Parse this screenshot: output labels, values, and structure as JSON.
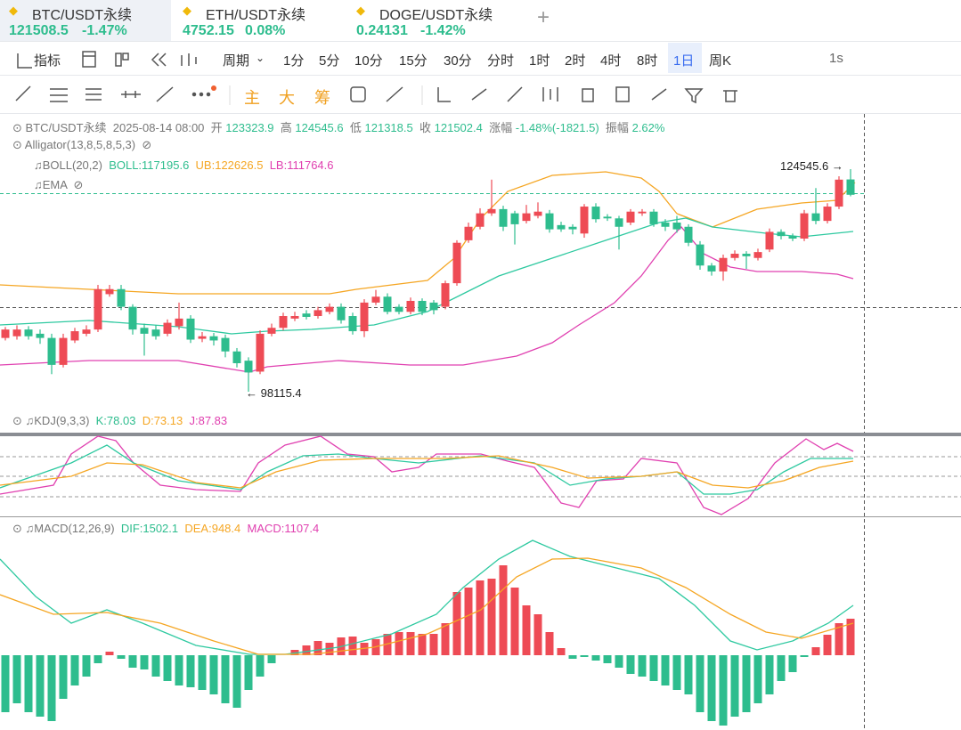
{
  "tabs": [
    {
      "symbol": "BTC/USDT永续",
      "price": "121508.5",
      "change": "-1.47%"
    },
    {
      "symbol": "ETH/USDT永续",
      "price": "4752.15",
      "change": "0.08%"
    },
    {
      "symbol": "DOGE/USDT永续",
      "price": "0.24131",
      "change": "-1.42%"
    }
  ],
  "toolbar": {
    "indicators": "指标",
    "period": "周期",
    "intervals": [
      "1分",
      "5分",
      "10分",
      "15分",
      "30分",
      "分时",
      "1时",
      "2时",
      "4时",
      "8时",
      "1日",
      "周K"
    ],
    "active_interval": 10,
    "refresh": "1s"
  },
  "drawing_tools": {
    "main": "主",
    "big": "大",
    "chips": "筹"
  },
  "chart_data": {
    "type": "candlestick",
    "symbol": "BTC/USDT永续",
    "time": "2025-08-14 08:00",
    "open_label": "开",
    "high_label": "高",
    "low_label": "低",
    "close_label": "收",
    "change_label": "涨幅",
    "change": "-1.48%(-1821.5)",
    "amplitude_label": "振幅",
    "amplitude": "2.62%",
    "up_color": "#ee4b55",
    "down_color": "#2ebd8e",
    "candles": [
      [
        104500,
        105800,
        104200,
        105500
      ],
      [
        104700,
        106000,
        104300,
        105500
      ],
      [
        105500,
        105900,
        104300,
        104700
      ],
      [
        105000,
        105500,
        103800,
        104500
      ],
      [
        104500,
        105000,
        100200,
        101300
      ],
      [
        101300,
        105000,
        101000,
        104500
      ],
      [
        104200,
        105700,
        103900,
        105300
      ],
      [
        105000,
        106000,
        104700,
        105500
      ],
      [
        105500,
        110800,
        105200,
        110300
      ],
      [
        109700,
        110800,
        109400,
        110300
      ],
      [
        110300,
        110800,
        107800,
        108200
      ],
      [
        108200,
        108500,
        104900,
        105500
      ],
      [
        105700,
        106200,
        102400,
        105000
      ],
      [
        105500,
        106000,
        104300,
        104700
      ],
      [
        105000,
        106700,
        104700,
        106300
      ],
      [
        105900,
        108700,
        105500,
        106800
      ],
      [
        106800,
        107200,
        103900,
        104300
      ],
      [
        104400,
        105200,
        104000,
        104700
      ],
      [
        104700,
        105100,
        103600,
        104200
      ],
      [
        104500,
        104900,
        102200,
        102900
      ],
      [
        102900,
        103300,
        101000,
        101500
      ],
      [
        101800,
        102200,
        98115.4,
        100400
      ],
      [
        100500,
        105400,
        100200,
        105000
      ],
      [
        105000,
        106200,
        104700,
        105700
      ],
      [
        105700,
        107500,
        105400,
        107100
      ],
      [
        106800,
        107600,
        106500,
        107100
      ],
      [
        107400,
        107800,
        106700,
        107000
      ],
      [
        107100,
        108200,
        106800,
        107800
      ],
      [
        107600,
        108600,
        107300,
        108200
      ],
      [
        108200,
        108600,
        106200,
        106600
      ],
      [
        107100,
        107500,
        104900,
        105300
      ],
      [
        105300,
        109100,
        104600,
        108700
      ],
      [
        108700,
        110200,
        108400,
        109400
      ],
      [
        109400,
        109800,
        107300,
        107600
      ],
      [
        108200,
        108500,
        107300,
        107600
      ],
      [
        107600,
        109300,
        107300,
        108900
      ],
      [
        108900,
        109200,
        107200,
        107600
      ],
      [
        108700,
        109000,
        107300,
        107800
      ],
      [
        108200,
        111300,
        107900,
        111000
      ],
      [
        111000,
        116100,
        110700,
        115800
      ],
      [
        116100,
        118200,
        115800,
        117700
      ],
      [
        117700,
        119900,
        117400,
        119300
      ],
      [
        119300,
        123300,
        119000,
        119800
      ],
      [
        119800,
        120200,
        117200,
        117700
      ],
      [
        119300,
        119600,
        115600,
        118000
      ],
      [
        118400,
        120300,
        118100,
        119300
      ],
      [
        119000,
        120600,
        118700,
        119500
      ],
      [
        119300,
        119700,
        117000,
        117400
      ],
      [
        117900,
        118300,
        117100,
        117400
      ],
      [
        117700,
        118000,
        116800,
        117400
      ],
      [
        116900,
        120400,
        116400,
        120100
      ],
      [
        120100,
        120500,
        118200,
        118600
      ],
      [
        118900,
        119200,
        118400,
        118700
      ],
      [
        118700,
        119000,
        115000,
        117700
      ],
      [
        118200,
        119800,
        117900,
        119500
      ],
      [
        119300,
        119800,
        119000,
        119500
      ],
      [
        119500,
        119800,
        117700,
        118000
      ],
      [
        118200,
        118600,
        117200,
        117700
      ],
      [
        118200,
        119000,
        117000,
        117400
      ],
      [
        117700,
        118000,
        115400,
        115800
      ],
      [
        115600,
        116000,
        112600,
        113100
      ],
      [
        113100,
        113400,
        111900,
        112400
      ],
      [
        112400,
        114400,
        111300,
        114000
      ],
      [
        114000,
        114900,
        113700,
        114500
      ],
      [
        114500,
        114800,
        112700,
        114200
      ],
      [
        114000,
        115100,
        113700,
        114700
      ],
      [
        115000,
        117500,
        114700,
        117100
      ],
      [
        117100,
        117400,
        116200,
        116600
      ],
      [
        116600,
        116900,
        116000,
        116300
      ],
      [
        116300,
        119700,
        116000,
        119300
      ],
      [
        119300,
        122300,
        118000,
        118400
      ],
      [
        118400,
        120500,
        118100,
        120100
      ],
      [
        120100,
        123700,
        119800,
        123300
      ],
      [
        123323.9,
        124545.6,
        121318.5,
        121502.4
      ]
    ],
    "indicators": {
      "alligator": "Alligator(13,8,5,8,5,3)",
      "boll": "BOLL(20,2)",
      "boll_mid": "BOLL:117195.6",
      "boll_ub": "UB:122626.5",
      "boll_lb": "LB:111764.6",
      "ema": "EMA",
      "kdj": "KDJ(9,3,3)",
      "k": "K:78.03",
      "d": "D:73.13",
      "j": "J:87.83",
      "macd": "MACD(12,26,9)",
      "dif": "DIF:1502.1",
      "dea": "DEA:948.4",
      "macd_value": "MACD:1107.4"
    }
  }
}
